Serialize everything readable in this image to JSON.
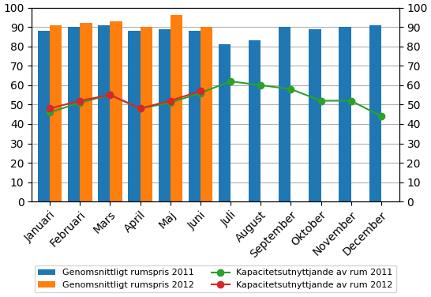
{
  "chart_data": {
    "type": "bar",
    "categories": [
      "Januari",
      "Februari",
      "Mars",
      "April",
      "Maj",
      "Juni",
      "Juli",
      "August",
      "September",
      "Oktober",
      "November",
      "December"
    ],
    "series": [
      {
        "name": "Genomsnittligt rumspris 2011",
        "type": "bar",
        "values": [
          88,
          90,
          91,
          88,
          89,
          88,
          81,
          83,
          90,
          89,
          90,
          91
        ]
      },
      {
        "name": "Genomsnittligt rumspris 2012",
        "type": "bar",
        "values": [
          91,
          92,
          93,
          90,
          96,
          90,
          null,
          null,
          null,
          null,
          null,
          null
        ]
      },
      {
        "name": "Kapacitetsutnyttjande av rum 2011",
        "type": "line",
        "marker": "o",
        "axis": "y2",
        "values": [
          46,
          51,
          55,
          48,
          51,
          56,
          62,
          60,
          58,
          52,
          52,
          44
        ]
      },
      {
        "name": "Kapacitetsutnyttjande av rum 2012",
        "type": "line",
        "marker": "o",
        "axis": "y2",
        "values": [
          48,
          52,
          55,
          48,
          52,
          57,
          null,
          null,
          null,
          null,
          null,
          null
        ]
      }
    ],
    "ylim": [
      0,
      100
    ],
    "yticks": [
      0,
      10,
      20,
      30,
      40,
      50,
      60,
      70,
      80,
      90,
      100
    ],
    "y2lim": [
      0,
      100
    ],
    "y2ticks": [
      0,
      10,
      20,
      30,
      40,
      50,
      60,
      70,
      80,
      90,
      100
    ],
    "grid": true,
    "legend": "lower center"
  }
}
